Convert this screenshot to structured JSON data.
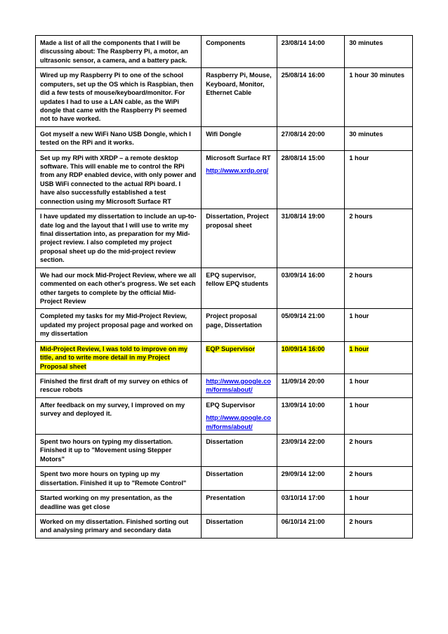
{
  "table": {
    "rows": [
      {
        "desc": "Made a list of all the components that I will be discussing about: The Raspberry Pi, a motor, an ultrasonic sensor, a camera, and a battery pack.",
        "resources": [
          {
            "text": "Components"
          }
        ],
        "datetime": "23/08/14 14:00",
        "duration": "30 minutes",
        "highlight": false
      },
      {
        "desc": "Wired up my Raspberry Pi to one of the school computers, set up the OS which is Raspbian, then did a few tests of mouse/keyboard/monitor.  For updates I had to use a LAN cable, as the WiPi dongle that came with the Raspberry Pi seemed not to have worked.",
        "resources": [
          {
            "text": "Raspberry Pi, Mouse, Keyboard, Monitor, Ethernet Cable"
          }
        ],
        "datetime": "25/08/14 16:00",
        "duration": "1 hour 30 minutes",
        "highlight": false
      },
      {
        "desc": "Got myself a new WiFi Nano USB Dongle, which I tested on the RPi and it works.",
        "resources": [
          {
            "text": "Wifi Dongle"
          }
        ],
        "datetime": "27/08/14 20:00",
        "duration": "30 minutes",
        "highlight": false
      },
      {
        "desc": "Set up my RPi with XRDP – a remote desktop software. This will enable me to control the RPi from any RDP enabled device, with only power and USB WiFi connected to the actual RPi board. I have also successfully established a test connection using my Microsoft Surface RT",
        "resources": [
          {
            "text": "Microsoft Surface RT"
          },
          {
            "text": "http://www.xrdp.org/",
            "link": true
          }
        ],
        "datetime": "28/08/14 15:00",
        "duration": "1 hour",
        "highlight": false
      },
      {
        "desc": "I have updated my dissertation to include an up-to-date log and the layout that I will use to write my final dissertation into, as preparation for my Mid-project review. I also completed my project proposal sheet up do the mid-project review section.",
        "resources": [
          {
            "text": "Dissertation, Project proposal sheet"
          }
        ],
        "datetime": "31/08/14 19:00",
        "duration": "2 hours",
        "highlight": false
      },
      {
        "desc": "We had our mock Mid-Project Review, where we all commented on each other's progress. We set each other targets to complete by the official Mid-Project Review",
        "resources": [
          {
            "text": "EPQ supervisor, fellow EPQ students"
          }
        ],
        "datetime": "03/09/14 16:00",
        "duration": "2 hours",
        "highlight": false
      },
      {
        "desc": "Completed my tasks for my Mid-Project Review, updated my project proposal page and worked on my dissertation",
        "resources": [
          {
            "text": "Project proposal page, Dissertation"
          }
        ],
        "datetime": "05/09/14 21:00",
        "duration": "1 hour",
        "highlight": false
      },
      {
        "desc": "Mid-Project Review, I was told to improve on my title, and to write more detail in my Project Proposal sheet",
        "resources": [
          {
            "text": "EQP Supervisor"
          }
        ],
        "datetime": "10/09/14 16:00",
        "duration": "1 hour",
        "highlight": true
      },
      {
        "desc": "Finished the first draft of my survey on ethics of rescue robots",
        "resources": [
          {
            "text": "http://www.google.com/forms/about/",
            "link": true
          }
        ],
        "datetime": "11/09/14 20:00",
        "duration": "1 hour",
        "highlight": false
      },
      {
        "desc": "After feedback on my survey, I improved on my survey and deployed it.",
        "resources": [
          {
            "text": "EPQ Supervisor"
          },
          {
            "text": "http://www.google.com/forms/about/",
            "link": true
          }
        ],
        "datetime": "13/09/14 10:00",
        "duration": "1 hour",
        "highlight": false
      },
      {
        "desc": "Spent two hours on typing my dissertation. Finished it up to \"Movement using Stepper Motors\"",
        "resources": [
          {
            "text": "Dissertation"
          }
        ],
        "datetime": "23/09/14 22:00",
        "duration": "2 hours",
        "highlight": false
      },
      {
        "desc": "Spent two more hours on typing up my dissertation. Finished it up to \"Remote Control\"",
        "resources": [
          {
            "text": "Dissertation"
          }
        ],
        "datetime": "29/09/14 12:00",
        "duration": "2 hours",
        "highlight": false
      },
      {
        "desc": "Started working on my presentation, as the deadline was get close",
        "resources": [
          {
            "text": "Presentation"
          }
        ],
        "datetime": "03/10/14 17:00",
        "duration": "1 hour",
        "highlight": false
      },
      {
        "desc": "Worked on my dissertation. Finished sorting out and analysing primary and secondary data",
        "resources": [
          {
            "text": "Dissertation"
          }
        ],
        "datetime": "06/10/14 21:00",
        "duration": "2 hours",
        "highlight": false
      }
    ]
  }
}
